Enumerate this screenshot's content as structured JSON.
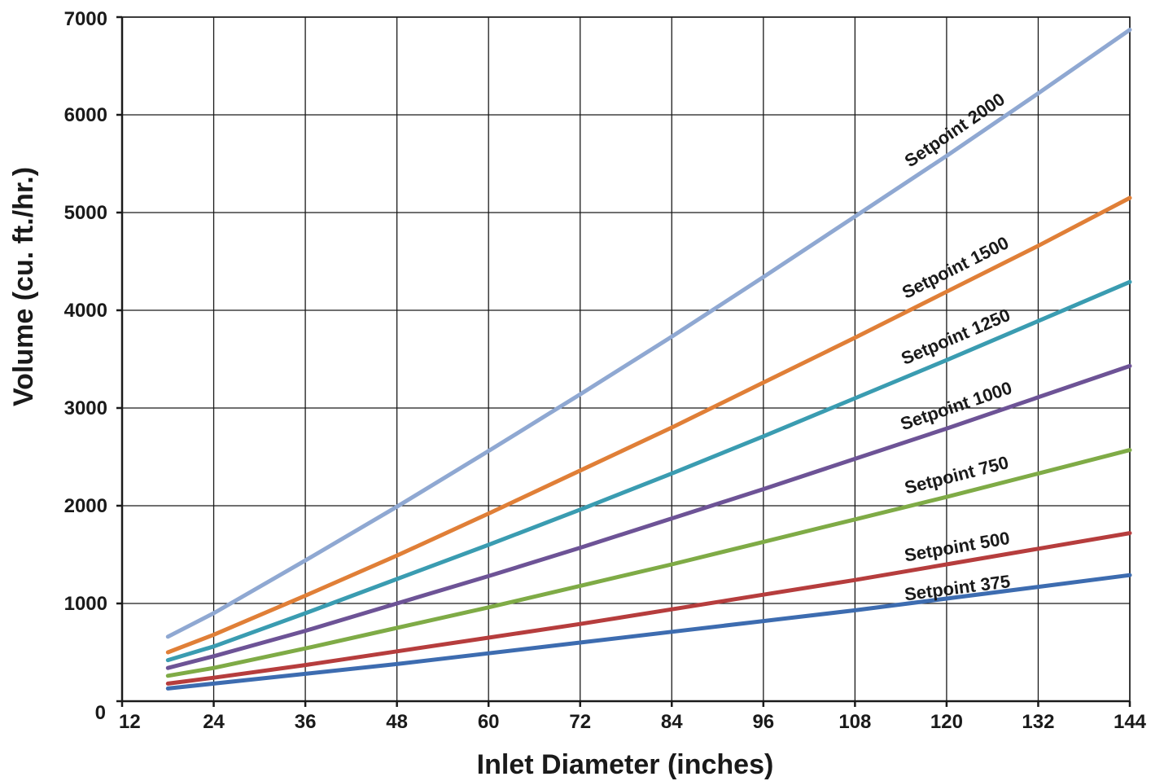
{
  "chart_data": {
    "type": "line",
    "xlabel": "Inlet Diameter (inches)",
    "ylabel": "Volume (cu. ft./hr.)",
    "xlim": [
      12,
      144
    ],
    "ylim": [
      0,
      7000
    ],
    "x_ticks": [
      12,
      24,
      36,
      48,
      60,
      72,
      84,
      96,
      108,
      120,
      132,
      144
    ],
    "y_ticks": [
      0,
      1000,
      2000,
      3000,
      4000,
      5000,
      6000,
      7000
    ],
    "grid": true,
    "x": [
      18,
      24,
      36,
      48,
      60,
      72,
      84,
      96,
      108,
      120,
      132,
      144
    ],
    "series": [
      {
        "name": "Setpoint 2000",
        "color": "#8fa8d2",
        "values": [
          660,
          900,
          1440,
          1990,
          2560,
          3140,
          3730,
          4340,
          4960,
          5580,
          6220,
          6870
        ]
      },
      {
        "name": "Setpoint 1500",
        "color": "#e07f37",
        "values": [
          500,
          680,
          1080,
          1490,
          1920,
          2360,
          2800,
          3260,
          3720,
          4190,
          4660,
          5150
        ]
      },
      {
        "name": "Setpoint 1250",
        "color": "#3a9cb1",
        "values": [
          420,
          560,
          900,
          1250,
          1600,
          1960,
          2330,
          2710,
          3100,
          3490,
          3890,
          4290
        ]
      },
      {
        "name": "Setpoint 1000",
        "color": "#6d5396",
        "values": [
          340,
          460,
          720,
          1000,
          1280,
          1570,
          1870,
          2170,
          2480,
          2790,
          3110,
          3430
        ]
      },
      {
        "name": "Setpoint 750",
        "color": "#7fab46",
        "values": [
          260,
          340,
          540,
          750,
          960,
          1180,
          1400,
          1630,
          1860,
          2090,
          2330,
          2570
        ]
      },
      {
        "name": "Setpoint 500",
        "color": "#b63d3d",
        "values": [
          180,
          240,
          370,
          510,
          650,
          790,
          940,
          1090,
          1240,
          1400,
          1560,
          1720
        ]
      },
      {
        "name": "Setpoint 375",
        "color": "#3d6cb0",
        "values": [
          130,
          180,
          280,
          380,
          490,
          600,
          710,
          820,
          930,
          1050,
          1170,
          1290
        ]
      }
    ]
  }
}
